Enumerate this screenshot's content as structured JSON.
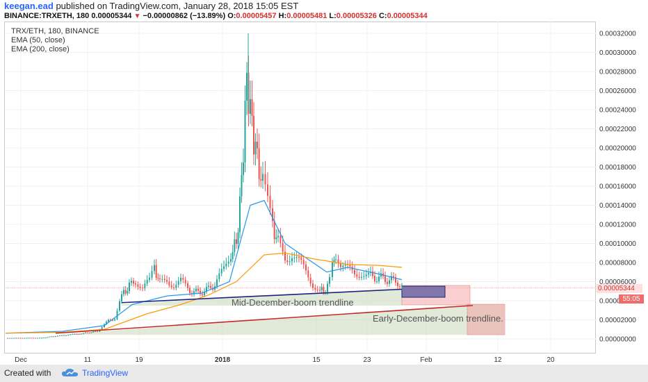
{
  "header": {
    "user": "keegan.ead",
    "published_text": "published on TradingView.com, January 28, 2018 15:05 EST",
    "symbol": "BINANCE:TRXETH, 180",
    "last_price": "0.00005344",
    "change": "−0.00000862 (−13.89%)",
    "open_label": "O:",
    "open": "0.00005457",
    "high_label": "H:",
    "high": "0.00005481",
    "low_label": "L:",
    "low": "0.00005326",
    "close_label": "C:",
    "close": "0.00005344",
    "down_icon": "down-triangle-icon"
  },
  "legend": {
    "title": "TRX/ETH, 180, BINANCE",
    "ema50": "EMA (50, close)",
    "ema200": "EMA (200, close)"
  },
  "price_marker": {
    "price": "0.00005344",
    "countdown": "55:05"
  },
  "footer": {
    "created": "Created with",
    "brand": "TradingView",
    "logo_icon": "tradingview-cloud-icon"
  },
  "colors": {
    "up": "#26a69a",
    "down": "#ef5350",
    "ema50": "#2196f3",
    "ema200": "#ff9800",
    "blue_trend": "#1a237e",
    "red_trend": "#c62828"
  },
  "chart_data": {
    "type": "candlestick",
    "title": "TRX/ETH, 180, BINANCE",
    "y_ticks": [
      "0.00032000",
      "0.00030000",
      "0.00028000",
      "0.00026000",
      "0.00024000",
      "0.00022000",
      "0.00020000",
      "0.00018000",
      "0.00016000",
      "0.00014000",
      "0.00012000",
      "0.00010000",
      "0.00008000",
      "0.00006000",
      "0.00004000",
      "0.00002000",
      "0.00000000"
    ],
    "x_ticks": [
      "Dec",
      "11",
      "19",
      "2018",
      "15",
      "23",
      "Feb",
      "12",
      "20"
    ],
    "ylim": [
      -2e-06,
      0.000328
    ],
    "annotations": [
      {
        "text": "Mid-December-boom trendline",
        "value_start": 3.8e-05,
        "value_end": 5.2e-05
      },
      {
        "text": "Early-December-boom trendline.",
        "value_start": 6e-06,
        "value_end": 3.5e-05
      }
    ],
    "series": [
      {
        "name": "EMA (50, close)",
        "values": [
          6e-06,
          8e-06,
          1.4e-05,
          3.6e-05,
          4.5e-05,
          4.8e-05,
          6e-05,
          0.00014,
          0.000145,
          0.0001,
          7e-05,
          7.5e-05,
          6.8e-05,
          6.2e-05
        ]
      },
      {
        "name": "EMA (200, close)",
        "values": [
          6e-06,
          7e-06,
          1e-05,
          2.6e-05,
          3.6e-05,
          4.6e-05,
          6e-05,
          8.8e-05,
          9e-05,
          8.4e-05,
          7.8e-05,
          7.7e-05,
          7.5e-05
        ]
      }
    ],
    "last_close": 5.344e-05
  }
}
